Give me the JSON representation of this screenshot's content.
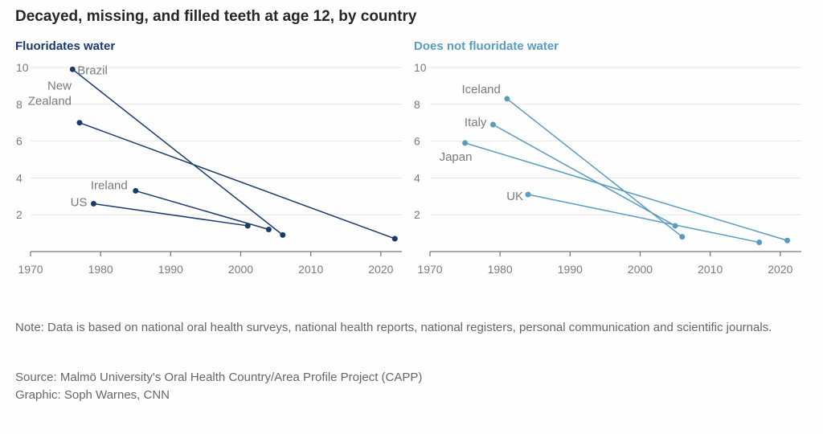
{
  "title": "Decayed, missing, and filled teeth at age 12, by country",
  "note": "Note: Data is based on national oral health surveys, national health reports, national registers, personal communication and scientific journals.",
  "source": "Source: Malmö University's Oral Health Country/Area Profile Project (CAPP)",
  "credit": "Graphic: Soph Warnes, CNN",
  "colors": {
    "dark": "#1a3a6b",
    "light": "#5a9bc0"
  },
  "chart_data": [
    {
      "type": "line",
      "title": "Fluoridates water",
      "color": "#1a3a6b",
      "xlim": [
        1970,
        2023
      ],
      "ylim": [
        0,
        10
      ],
      "xticks": [
        1970,
        1980,
        1990,
        2000,
        2010,
        2020
      ],
      "yticks": [
        2,
        4,
        6,
        8,
        10
      ],
      "grid": true,
      "series": [
        {
          "name": "Brazil",
          "label": [
            "Brazil"
          ],
          "points": [
            [
              1976,
              9.9
            ],
            [
              2006,
              0.9
            ]
          ]
        },
        {
          "name": "New Zealand",
          "label": [
            "New",
            "Zealand"
          ],
          "points": [
            [
              1977,
              7.0
            ],
            [
              2022,
              0.7
            ]
          ]
        },
        {
          "name": "Ireland",
          "label": [
            "Ireland"
          ],
          "points": [
            [
              1985,
              3.3
            ],
            [
              2004,
              1.2
            ]
          ]
        },
        {
          "name": "US",
          "label": [
            "US"
          ],
          "points": [
            [
              1979,
              2.6
            ],
            [
              2001,
              1.4
            ]
          ]
        }
      ]
    },
    {
      "type": "line",
      "title": "Does not fluoridate water",
      "color": "#5a9bc0",
      "xlim": [
        1970,
        2023
      ],
      "ylim": [
        0,
        10
      ],
      "xticks": [
        1970,
        1980,
        1990,
        2000,
        2010,
        2020
      ],
      "yticks": [
        2,
        4,
        6,
        8,
        10
      ],
      "grid": true,
      "series": [
        {
          "name": "Iceland",
          "label": [
            "Iceland"
          ],
          "points": [
            [
              1981,
              8.3
            ],
            [
              2006,
              0.8
            ]
          ]
        },
        {
          "name": "Italy",
          "label": [
            "Italy"
          ],
          "points": [
            [
              1979,
              6.9
            ],
            [
              2005,
              1.4
            ]
          ]
        },
        {
          "name": "Japan",
          "label": [
            "Japan"
          ],
          "points": [
            [
              1975,
              5.9
            ],
            [
              2021,
              0.6
            ]
          ]
        },
        {
          "name": "UK",
          "label": [
            "UK"
          ],
          "points": [
            [
              1984,
              3.1
            ],
            [
              2017,
              0.5
            ]
          ]
        }
      ]
    }
  ]
}
